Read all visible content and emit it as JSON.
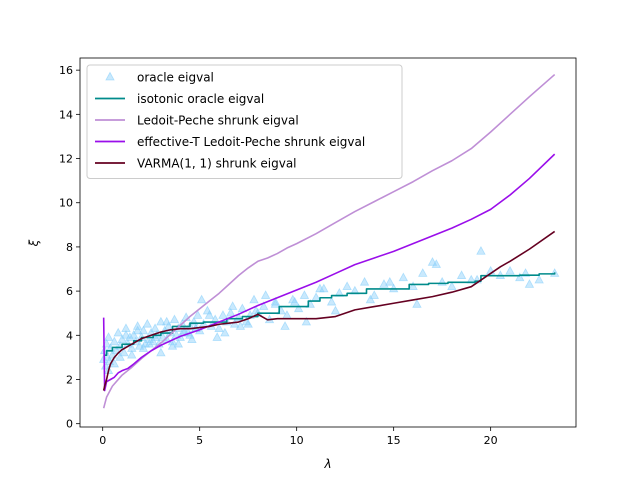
{
  "chart_data": {
    "type": "scatter",
    "title": "",
    "xlabel": "λ",
    "ylabel": "ξ",
    "xlim": [
      -1.17,
      24.4
    ],
    "ylim": [
      -0.15,
      16.55
    ],
    "xticks": [
      0,
      5,
      10,
      15,
      20
    ],
    "yticks": [
      0,
      2,
      4,
      6,
      8,
      10,
      12,
      14,
      16
    ],
    "legend_position": "top-left",
    "series": [
      {
        "name": "oracle eigval",
        "kind": "scatter",
        "marker": "triangle",
        "color": "#87cefa",
        "x": [
          0.05,
          0.1,
          0.15,
          0.2,
          0.25,
          0.3,
          0.35,
          0.4,
          0.5,
          0.6,
          0.7,
          0.8,
          0.9,
          1.0,
          1.1,
          1.2,
          1.3,
          1.4,
          1.5,
          1.6,
          1.7,
          1.8,
          1.9,
          2.0,
          2.1,
          2.2,
          2.3,
          2.4,
          2.5,
          2.6,
          2.7,
          2.8,
          2.9,
          3.0,
          3.1,
          3.2,
          3.3,
          3.4,
          3.5,
          3.6,
          3.7,
          3.8,
          3.9,
          4.0,
          4.1,
          4.2,
          4.3,
          4.4,
          4.5,
          4.6,
          4.7,
          4.8,
          4.9,
          5.0,
          5.2,
          5.4,
          5.6,
          5.8,
          6.0,
          6.2,
          6.4,
          6.6,
          6.8,
          7.0,
          7.2,
          7.4,
          7.6,
          7.8,
          8.0,
          8.3,
          8.6,
          8.9,
          9.2,
          9.5,
          9.8,
          10.1,
          10.4,
          10.7,
          11.0,
          11.4,
          11.8,
          12.2,
          12.6,
          13.0,
          13.5,
          14.0,
          14.5,
          15.0,
          15.5,
          16.0,
          16.5,
          17.0,
          17.5,
          18.0,
          18.5,
          19.0,
          19.5,
          20.0,
          20.5,
          21.0,
          21.5,
          22.0,
          22.5,
          23.3,
          0.3,
          0.6,
          0.9,
          1.2,
          1.5,
          1.8,
          2.1,
          2.4,
          2.7,
          3.0,
          3.3,
          3.6,
          3.9,
          4.2,
          4.5,
          4.8,
          5.1,
          5.5,
          5.9,
          6.3,
          6.7,
          7.1,
          7.5,
          7.9,
          8.4,
          8.9,
          9.4,
          9.9,
          10.5,
          11.2,
          12.0,
          13.8,
          14.8,
          16.2,
          17.2,
          19.3,
          21.8
        ],
        "y": [
          2.9,
          3.3,
          2.6,
          3.6,
          3.0,
          3.9,
          2.8,
          3.4,
          3.1,
          3.7,
          3.3,
          4.1,
          3.5,
          3.8,
          3.2,
          4.3,
          3.6,
          3.9,
          3.4,
          4.0,
          3.7,
          4.4,
          3.5,
          3.9,
          4.2,
          3.6,
          4.5,
          3.8,
          4.1,
          3.7,
          4.3,
          4.0,
          3.6,
          4.6,
          3.9,
          4.2,
          3.8,
          4.4,
          4.1,
          3.7,
          4.7,
          4.0,
          4.3,
          3.9,
          4.5,
          4.2,
          4.8,
          4.1,
          4.4,
          3.8,
          4.6,
          4.3,
          4.9,
          4.2,
          4.5,
          5.1,
          4.4,
          4.7,
          4.3,
          4.9,
          4.6,
          5.0,
          4.5,
          4.8,
          5.2,
          4.6,
          4.9,
          5.6,
          5.0,
          5.3,
          4.7,
          5.5,
          5.1,
          4.9,
          5.6,
          5.2,
          5.8,
          5.4,
          5.7,
          6.1,
          5.5,
          5.9,
          6.2,
          6.0,
          6.4,
          5.8,
          6.3,
          6.1,
          6.6,
          6.2,
          6.8,
          7.3,
          6.4,
          6.2,
          6.7,
          6.5,
          7.8,
          6.9,
          6.7,
          6.9,
          6.6,
          6.3,
          6.5,
          6.8,
          2.4,
          2.7,
          3.0,
          4.0,
          3.1,
          4.2,
          3.4,
          3.6,
          3.9,
          3.2,
          4.6,
          3.5,
          3.6,
          4.1,
          4.0,
          4.3,
          5.6,
          4.9,
          3.9,
          4.1,
          5.3,
          4.4,
          4.5,
          5.1,
          5.8,
          5.4,
          4.4,
          5.5,
          4.6,
          6.1,
          5.1,
          5.6,
          6.4,
          5.4,
          7.2,
          6.5,
          6.8
        ]
      },
      {
        "name": "isotonic oracle eigval",
        "kind": "step",
        "color": "#008b8b",
        "x": [
          0.05,
          0.2,
          0.5,
          1.0,
          1.6,
          2.0,
          2.6,
          3.0,
          3.6,
          4.5,
          5.2,
          6.4,
          7.2,
          8.0,
          9.1,
          10.6,
          11.2,
          11.8,
          12.6,
          13.6,
          15.8,
          16.8,
          17.8,
          19.2,
          19.5,
          20.5,
          21.5,
          22.5,
          23.3
        ],
        "y": [
          3.1,
          3.3,
          3.45,
          3.6,
          3.75,
          3.9,
          4.0,
          4.1,
          4.4,
          4.55,
          4.6,
          4.75,
          4.85,
          5.0,
          5.3,
          5.55,
          5.7,
          5.8,
          5.9,
          6.1,
          6.3,
          6.35,
          6.4,
          6.45,
          6.7,
          6.7,
          6.72,
          6.78,
          6.85
        ]
      },
      {
        "name": "Ledoit-Peche shrunk eigval",
        "kind": "line",
        "color": "#bf8fd6",
        "x": [
          0.05,
          0.2,
          0.5,
          1.0,
          1.5,
          2.0,
          2.5,
          3.0,
          3.5,
          4.0,
          4.5,
          5.0,
          5.5,
          6.0,
          6.5,
          7.0,
          7.5,
          8.0,
          8.5,
          9.0,
          9.5,
          10.0,
          11.0,
          12.0,
          13.0,
          14.0,
          15.0,
          16.0,
          17.0,
          18.0,
          19.0,
          20.0,
          21.0,
          22.0,
          23.3
        ],
        "y": [
          0.7,
          1.2,
          1.7,
          2.2,
          2.55,
          2.95,
          3.3,
          3.65,
          4.05,
          4.45,
          4.85,
          5.2,
          5.55,
          5.9,
          6.3,
          6.7,
          7.05,
          7.35,
          7.5,
          7.7,
          7.95,
          8.15,
          8.6,
          9.1,
          9.6,
          10.05,
          10.5,
          10.95,
          11.45,
          11.9,
          12.45,
          13.2,
          14.0,
          14.8,
          15.8
        ]
      },
      {
        "name": "effective-T Ledoit-Peche shrunk eigval",
        "kind": "line",
        "color": "#9a0eea",
        "x": [
          0.05,
          0.1,
          0.2,
          0.4,
          0.6,
          0.8,
          1.0,
          1.3,
          1.6,
          2.0,
          2.5,
          3.0,
          3.5,
          4.0,
          4.5,
          5.0,
          6.0,
          7.0,
          8.0,
          9.0,
          10.0,
          11.0,
          12.0,
          13.0,
          14.0,
          15.0,
          16.0,
          17.0,
          18.0,
          19.0,
          20.0,
          21.0,
          22.0,
          23.3
        ],
        "y": [
          4.8,
          1.5,
          1.9,
          2.0,
          2.1,
          2.3,
          2.4,
          2.5,
          2.7,
          3.0,
          3.3,
          3.55,
          3.75,
          3.95,
          4.1,
          4.25,
          4.6,
          4.95,
          5.35,
          5.7,
          6.05,
          6.4,
          6.8,
          7.2,
          7.5,
          7.8,
          8.15,
          8.5,
          8.85,
          9.25,
          9.7,
          10.35,
          11.1,
          12.2
        ]
      },
      {
        "name": "VARMA(1, 1) shrunk eigval",
        "kind": "line",
        "color": "#650021",
        "x": [
          0.05,
          0.1,
          0.2,
          0.3,
          0.4,
          0.6,
          0.8,
          1.0,
          1.3,
          1.6,
          2.0,
          2.5,
          3.0,
          3.5,
          4.0,
          4.5,
          5.0,
          5.5,
          6.0,
          6.5,
          7.0,
          7.5,
          8.0,
          8.5,
          9.0,
          10.0,
          11.0,
          12.0,
          13.0,
          14.0,
          15.0,
          16.0,
          17.0,
          18.0,
          19.0,
          19.5,
          20.0,
          20.5,
          21.0,
          22.0,
          23.3
        ],
        "y": [
          1.5,
          1.7,
          2.0,
          2.4,
          2.7,
          3.0,
          3.2,
          3.35,
          3.5,
          3.65,
          3.85,
          4.0,
          4.15,
          4.25,
          4.3,
          4.3,
          4.35,
          4.4,
          4.5,
          4.55,
          4.6,
          4.75,
          4.95,
          4.7,
          4.75,
          4.75,
          4.75,
          4.85,
          5.15,
          5.3,
          5.45,
          5.6,
          5.75,
          5.95,
          6.2,
          6.5,
          6.8,
          7.1,
          7.35,
          7.9,
          8.7
        ]
      }
    ]
  }
}
